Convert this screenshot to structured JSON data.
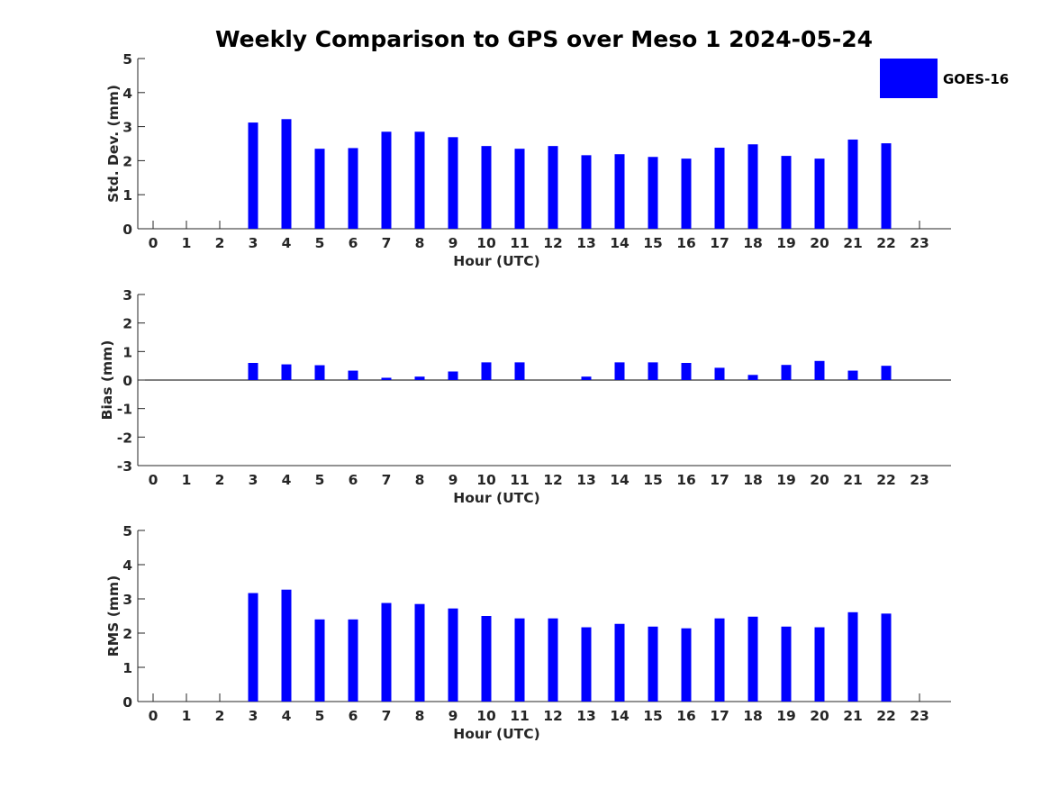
{
  "colors": {
    "bar": "#0000ff",
    "axis": "#262626",
    "background": "#ffffff"
  },
  "title": "Weekly Comparison to GPS over Meso 1 2024-05-24",
  "legend": {
    "label": "GOES-16",
    "placement": "top-right"
  },
  "chart_data": [
    {
      "type": "bar",
      "name": "std",
      "title": "Weekly Comparison to GPS over Meso 1 2024-05-24",
      "xlabel": "Hour (UTC)",
      "ylabel": "Std. Dev. (mm)",
      "categories": [
        "0",
        "1",
        "2",
        "3",
        "4",
        "5",
        "6",
        "7",
        "8",
        "9",
        "10",
        "11",
        "12",
        "13",
        "14",
        "15",
        "16",
        "17",
        "18",
        "19",
        "20",
        "21",
        "22",
        "23"
      ],
      "ylim": [
        0,
        5
      ],
      "yticks": [
        "0",
        "1",
        "2",
        "3",
        "4",
        "5"
      ],
      "series": [
        {
          "name": "GOES-16",
          "values": [
            null,
            null,
            null,
            3.12,
            3.22,
            2.35,
            2.37,
            2.85,
            2.85,
            2.69,
            2.43,
            2.35,
            2.43,
            2.16,
            2.19,
            2.11,
            2.06,
            2.38,
            2.48,
            2.14,
            2.06,
            2.62,
            2.51,
            null
          ]
        }
      ]
    },
    {
      "type": "bar",
      "name": "bias",
      "xlabel": "Hour (UTC)",
      "ylabel": "Bias (mm)",
      "categories": [
        "0",
        "1",
        "2",
        "3",
        "4",
        "5",
        "6",
        "7",
        "8",
        "9",
        "10",
        "11",
        "12",
        "13",
        "14",
        "15",
        "16",
        "17",
        "18",
        "19",
        "20",
        "21",
        "22",
        "23"
      ],
      "ylim": [
        -3,
        3
      ],
      "yticks": [
        "-3",
        "-2",
        "-1",
        "0",
        "1",
        "2",
        "3"
      ],
      "series": [
        {
          "name": "GOES-16",
          "values": [
            null,
            null,
            null,
            0.6,
            0.55,
            0.52,
            0.33,
            0.08,
            0.12,
            0.3,
            0.62,
            0.62,
            null,
            0.12,
            0.62,
            0.62,
            0.6,
            0.43,
            0.18,
            0.53,
            0.67,
            0.33,
            0.5,
            null
          ]
        }
      ]
    },
    {
      "type": "bar",
      "name": "rms",
      "xlabel": "Hour (UTC)",
      "ylabel": "RMS (mm)",
      "categories": [
        "0",
        "1",
        "2",
        "3",
        "4",
        "5",
        "6",
        "7",
        "8",
        "9",
        "10",
        "11",
        "12",
        "13",
        "14",
        "15",
        "16",
        "17",
        "18",
        "19",
        "20",
        "21",
        "22",
        "23"
      ],
      "ylim": [
        0,
        5
      ],
      "yticks": [
        "0",
        "1",
        "2",
        "3",
        "4",
        "5"
      ],
      "series": [
        {
          "name": "GOES-16",
          "values": [
            null,
            null,
            null,
            3.17,
            3.27,
            2.4,
            2.4,
            2.88,
            2.85,
            2.72,
            2.5,
            2.43,
            2.43,
            2.17,
            2.27,
            2.19,
            2.14,
            2.43,
            2.48,
            2.19,
            2.17,
            2.61,
            2.57,
            null
          ]
        }
      ]
    }
  ]
}
